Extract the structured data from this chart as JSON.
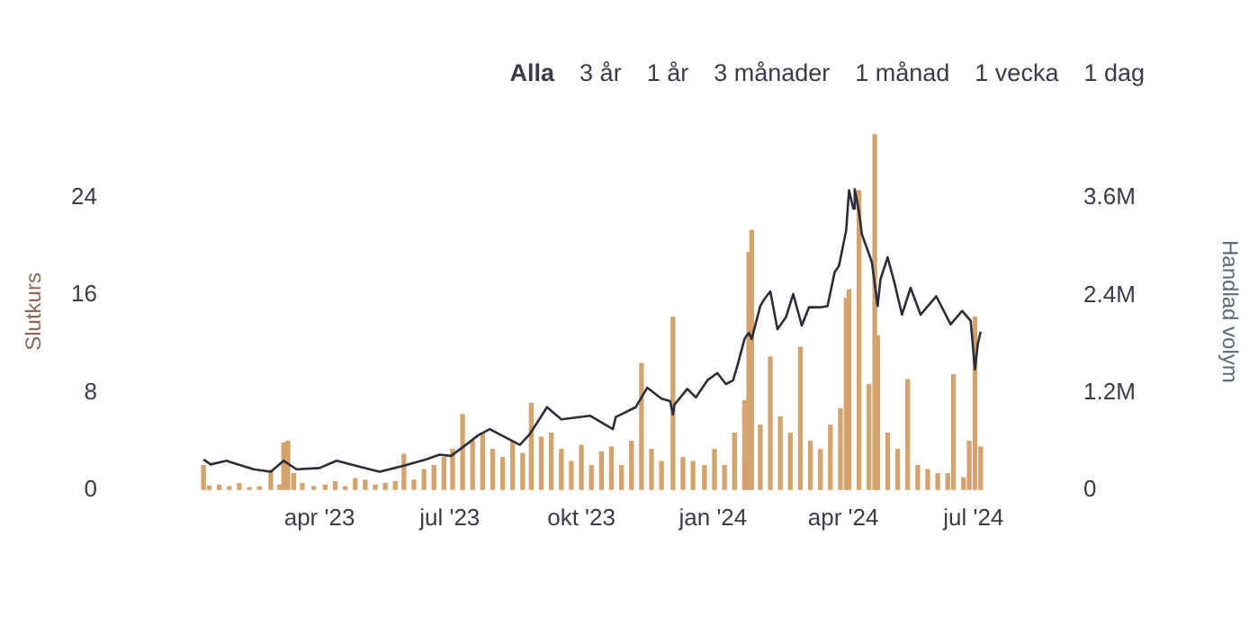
{
  "chart_data": {
    "type": "line",
    "ylabel": "Slutkurs",
    "y2label": "Handlad volym",
    "annotations": [
      "Alla",
      "3 år",
      "1 år",
      "3 månader",
      "1 månad",
      "1 vecka",
      "1 dag"
    ],
    "xlim": [
      "2023-01-08",
      "2024-07-08"
    ],
    "xticks": [
      {
        "value": "2023-04-01",
        "label": "apr '23"
      },
      {
        "value": "2023-07-01",
        "label": "jul '23"
      },
      {
        "value": "2023-10-01",
        "label": "okt '23"
      },
      {
        "value": "2024-01-01",
        "label": "jan '24"
      },
      {
        "value": "2024-04-01",
        "label": "apr '24"
      },
      {
        "value": "2024-07-01",
        "label": "jul '24"
      }
    ],
    "ylim": [
      0,
      29.3
    ],
    "yticks": [
      0,
      8,
      16,
      24
    ],
    "y2lim": [
      0,
      4400000
    ],
    "y2ticks": [
      0,
      {
        "value": 1200000,
        "label": "1.2M"
      },
      {
        "value": 2400000,
        "label": "2.4M"
      },
      {
        "value": 3600000,
        "label": "3.6M"
      }
    ],
    "grid": false,
    "legend": false,
    "marker": "none",
    "line_style": "solid",
    "series": [
      {
        "color": "#2b2d3a",
        "x": [
          "2023-01-10",
          "2023-01-15",
          "2023-01-26",
          "2023-02-14",
          "2023-02-26",
          "2023-03-07",
          "2023-03-16",
          "2023-04-01",
          "2023-04-13",
          "2023-05-03",
          "2023-05-13",
          "2023-05-30",
          "2023-06-14",
          "2023-06-24",
          "2023-07-02",
          "2023-07-10",
          "2023-07-21",
          "2023-07-29",
          "2023-08-19",
          "2023-08-26",
          "2023-09-07",
          "2023-09-17",
          "2023-10-07",
          "2023-10-23",
          "2023-10-25",
          "2023-11-08",
          "2023-11-16",
          "2023-11-26",
          "2023-12-02",
          "2023-12-04",
          "2023-12-05",
          "2023-12-14",
          "2023-12-20",
          "2023-12-28",
          "2024-01-04",
          "2024-01-10",
          "2024-01-15",
          "2024-01-18",
          "2024-01-23",
          "2024-01-26",
          "2024-01-28",
          "2024-02-03",
          "2024-02-06",
          "2024-02-10",
          "2024-02-15",
          "2024-02-21",
          "2024-02-26",
          "2024-03-03",
          "2024-03-08",
          "2024-03-16",
          "2024-03-21",
          "2024-03-26",
          "2024-03-29",
          "2024-04-03",
          "2024-04-05",
          "2024-04-08",
          "2024-04-09",
          "2024-04-12",
          "2024-04-14",
          "2024-04-21",
          "2024-04-25",
          "2024-04-27",
          "2024-05-02",
          "2024-05-07",
          "2024-05-12",
          "2024-05-18",
          "2024-05-25",
          "2024-06-05",
          "2024-06-15",
          "2024-06-23",
          "2024-06-29",
          "2024-07-02",
          "2024-07-04",
          "2024-07-06"
        ],
        "values": [
          2.5,
          2.1,
          2.4,
          1.7,
          1.5,
          2.4,
          1.7,
          1.8,
          2.4,
          1.8,
          1.5,
          2.0,
          2.5,
          2.9,
          2.8,
          3.5,
          4.5,
          5.0,
          3.7,
          4.6,
          6.8,
          5.8,
          6.1,
          5.0,
          6.0,
          6.8,
          8.4,
          7.5,
          7.3,
          6.2,
          7.0,
          8.3,
          7.6,
          9.0,
          9.6,
          8.7,
          9.0,
          10.2,
          12.4,
          12.9,
          12.4,
          15.1,
          15.7,
          16.3,
          13.2,
          14.2,
          16.1,
          13.5,
          15.0,
          15.0,
          15.1,
          17.9,
          18.4,
          21.3,
          24.6,
          23.1,
          24.7,
          22.8,
          21.0,
          18.7,
          15.1,
          17.3,
          19.1,
          16.9,
          14.4,
          16.6,
          14.4,
          15.9,
          13.6,
          14.7,
          13.9,
          9.9,
          12.0,
          13.0
        ]
      },
      {
        "type": "bar",
        "axis": "y2",
        "color": "#d4a26c",
        "x": [
          "2023-01-10",
          "2023-01-14",
          "2023-01-21",
          "2023-01-28",
          "2023-02-04",
          "2023-02-11",
          "2023-02-18",
          "2023-02-26",
          "2023-03-04",
          "2023-03-07",
          "2023-03-10",
          "2023-03-14",
          "2023-03-20",
          "2023-03-28",
          "2023-04-05",
          "2023-04-12",
          "2023-04-19",
          "2023-04-26",
          "2023-05-03",
          "2023-05-10",
          "2023-05-17",
          "2023-05-24",
          "2023-05-30",
          "2023-06-06",
          "2023-06-13",
          "2023-06-20",
          "2023-06-27",
          "2023-07-03",
          "2023-07-10",
          "2023-07-17",
          "2023-07-24",
          "2023-07-31",
          "2023-08-07",
          "2023-08-14",
          "2023-08-21",
          "2023-08-27",
          "2023-09-03",
          "2023-09-10",
          "2023-09-17",
          "2023-09-24",
          "2023-10-01",
          "2023-10-08",
          "2023-10-15",
          "2023-10-22",
          "2023-10-29",
          "2023-11-05",
          "2023-11-12",
          "2023-11-19",
          "2023-11-26",
          "2023-12-04",
          "2023-12-11",
          "2023-12-18",
          "2023-12-26",
          "2024-01-02",
          "2024-01-09",
          "2024-01-16",
          "2024-01-23",
          "2024-01-26",
          "2024-01-28",
          "2024-02-03",
          "2024-02-10",
          "2024-02-17",
          "2024-02-24",
          "2024-03-02",
          "2024-03-09",
          "2024-03-16",
          "2024-03-23",
          "2024-03-30",
          "2024-04-03",
          "2024-04-05",
          "2024-04-12",
          "2024-04-19",
          "2024-04-23",
          "2024-04-25",
          "2024-05-02",
          "2024-05-09",
          "2024-05-16",
          "2024-05-23",
          "2024-05-30",
          "2024-06-06",
          "2024-06-13",
          "2024-06-17",
          "2024-06-24",
          "2024-06-28",
          "2024-07-02",
          "2024-07-06"
        ],
        "values": [
          300000,
          50000,
          60000,
          40000,
          80000,
          30000,
          40000,
          240000,
          60000,
          580000,
          600000,
          200000,
          80000,
          40000,
          60000,
          100000,
          40000,
          140000,
          120000,
          60000,
          80000,
          100000,
          440000,
          120000,
          250000,
          300000,
          400000,
          500000,
          930000,
          600000,
          700000,
          500000,
          400000,
          600000,
          450000,
          1070000,
          650000,
          700000,
          500000,
          350000,
          550000,
          300000,
          470000,
          530000,
          300000,
          600000,
          1560000,
          500000,
          350000,
          2130000,
          400000,
          350000,
          300000,
          500000,
          300000,
          700000,
          1100000,
          2930000,
          3200000,
          800000,
          1640000,
          900000,
          700000,
          1760000,
          600000,
          500000,
          800000,
          1000000,
          2360000,
          2470000,
          3690000,
          1300000,
          4380000,
          1900000,
          700000,
          500000,
          1360000,
          300000,
          250000,
          200000,
          200000,
          1420000,
          150000,
          600000,
          2130000,
          530000
        ]
      }
    ]
  }
}
